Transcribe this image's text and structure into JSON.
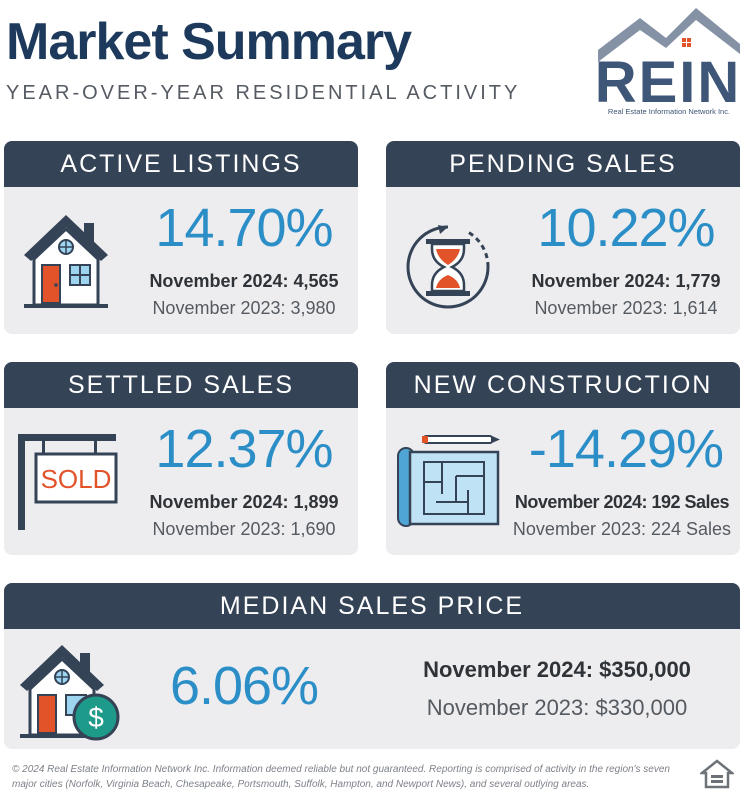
{
  "header": {
    "title": "Market Summary",
    "subtitle": "YEAR-OVER-YEAR RESIDENTIAL ACTIVITY",
    "logo_text": "REIN",
    "logo_subtext": "Real Estate Information Network Inc."
  },
  "cards": {
    "active_listings": {
      "heading": "ACTIVE LISTINGS",
      "change": "14.70%",
      "current": "November 2024: 4,565",
      "previous": "November 2023: 3,980",
      "icon": "house-icon"
    },
    "pending_sales": {
      "heading": "PENDING SALES",
      "change": "10.22%",
      "current": "November 2024: 1,779",
      "previous": "November 2023: 1,614",
      "icon": "hourglass-icon"
    },
    "settled_sales": {
      "heading": "SETTLED SALES",
      "change": "12.37%",
      "current": "November 2024: 1,899",
      "previous": "November 2023: 1,690",
      "icon": "sold-sign-icon",
      "sign_text": "SOLD"
    },
    "new_construction": {
      "heading": "NEW CONSTRUCTION",
      "change": "-14.29%",
      "current": "November 2024: 192 Sales",
      "previous": "November 2023: 224 Sales",
      "icon": "blueprint-icon"
    },
    "median_sales_price": {
      "heading": "MEDIAN SALES PRICE",
      "change": "6.06%",
      "current": "November 2024: $350,000",
      "previous": "November 2023: $330,000",
      "icon": "house-dollar-icon"
    }
  },
  "footer": {
    "disclaimer": "© 2024 Real Estate Information Network Inc. Information deemed reliable but not guaranteed. Reporting is comprised of activity in the region's seven major cities (Norfolk, Virginia Beach, Chesapeake, Portsmouth, Suffolk, Hampton, and Newport News), and several outlying areas.",
    "badge_icon": "equal-housing-opportunity-icon"
  },
  "colors": {
    "navy": "#1d3a5c",
    "header_bar": "#344356",
    "accent_blue": "#2b8ec7",
    "card_bg": "#ededf0",
    "orange": "#e2532a"
  }
}
